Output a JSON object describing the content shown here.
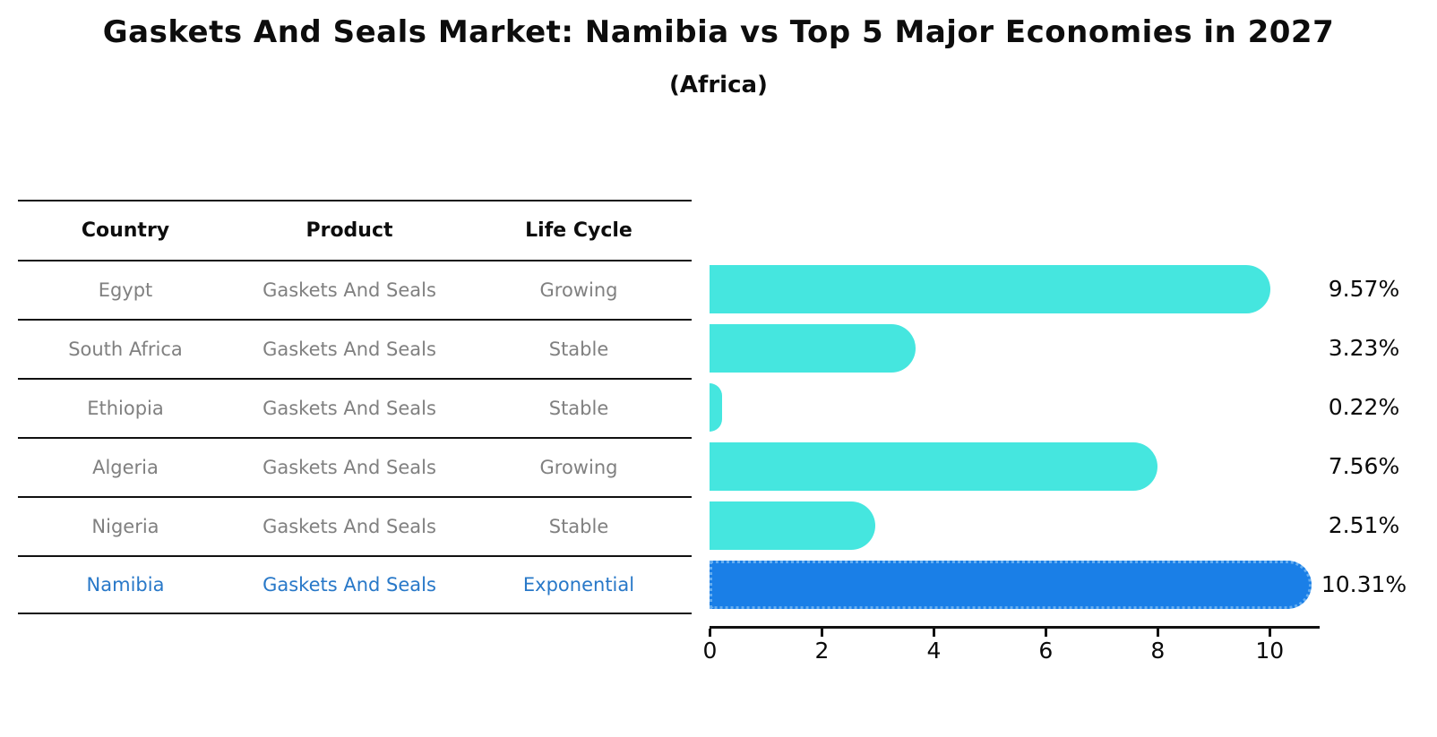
{
  "chart_data": {
    "type": "bar",
    "orientation": "horizontal",
    "title": "Gaskets And Seals Market: Namibia vs Top 5 Major Economies in 2027",
    "subtitle": "(Africa)",
    "categories": [
      "Egypt",
      "South Africa",
      "Ethiopia",
      "Algeria",
      "Nigeria",
      "Namibia"
    ],
    "values": [
      9.57,
      3.23,
      0.22,
      7.56,
      2.51,
      10.31
    ],
    "value_labels": [
      "9.57%",
      "3.23%",
      "0.22%",
      "7.56%",
      "2.51%",
      "10.31%"
    ],
    "xlabel": "",
    "ylabel": "",
    "xticks": [
      0,
      2,
      4,
      6,
      8,
      10
    ],
    "xlim": [
      0,
      10.9
    ],
    "grid": false,
    "legend": false,
    "highlight_index": 5
  },
  "table": {
    "headers": [
      "Country",
      "Product",
      "Life Cycle"
    ],
    "rows": [
      {
        "country": "Egypt",
        "product": "Gaskets And Seals",
        "life_cycle": "Growing",
        "highlight": false
      },
      {
        "country": "South Africa",
        "product": "Gaskets And Seals",
        "life_cycle": "Stable",
        "highlight": false
      },
      {
        "country": "Ethiopia",
        "product": "Gaskets And Seals",
        "life_cycle": "Stable",
        "highlight": false
      },
      {
        "country": "Algeria",
        "product": "Gaskets And Seals",
        "life_cycle": "Growing",
        "highlight": false
      },
      {
        "country": "Nigeria",
        "product": "Gaskets And Seals",
        "life_cycle": "Stable",
        "highlight": false
      },
      {
        "country": "Namibia",
        "product": "Gaskets And Seals",
        "life_cycle": "Exponential",
        "highlight": true
      }
    ]
  },
  "colors": {
    "bar": "#45E6DF",
    "highlight_bar": "#1A7FE7",
    "highlight_border": "#66AEF0",
    "highlight_text": "#2878C8",
    "row_text": "#808080",
    "header_text": "#0D0D0D",
    "axis": "#111111"
  }
}
